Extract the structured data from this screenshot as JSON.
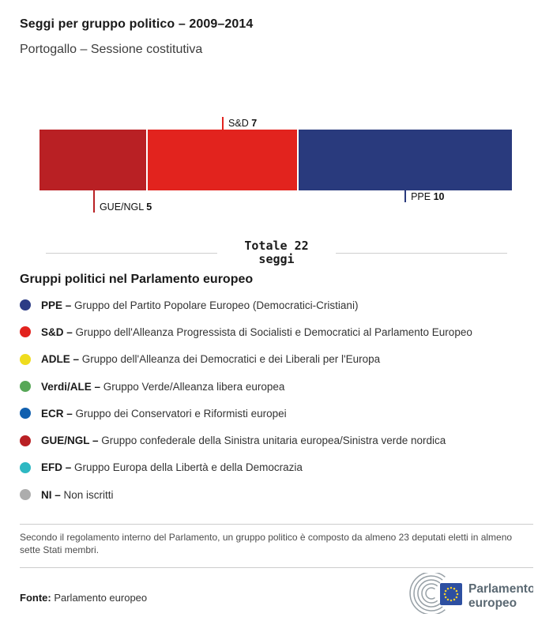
{
  "header": {
    "title": "Seggi per gruppo politico – 2009–2014",
    "subtitle": "Portogallo – Sessione costitutiva"
  },
  "chart_data": {
    "type": "bar",
    "variant": "stacked-horizontal-seat-bar",
    "title": "Seggi per gruppo politico – 2009–2014",
    "subtitle": "Portogallo – Sessione costitutiva",
    "total_seats": 22,
    "total_label_line1": "Totale 22",
    "total_label_line2": "seggi",
    "series": [
      {
        "name": "GUE/NGL",
        "value": 5,
        "color": "#b92024",
        "callout": "below",
        "tick_len": 28,
        "label_align": "end"
      },
      {
        "name": "S&D",
        "value": 7,
        "color": "#e2231e",
        "callout": "above",
        "tick_len": 16,
        "label_align": "start"
      },
      {
        "name": "PPE",
        "value": 10,
        "color": "#293a7d",
        "callout": "below",
        "tick_len": 15,
        "label_align": "start"
      }
    ],
    "axis": "none",
    "grid": false
  },
  "legend": {
    "heading": "Gruppi politici nel Parlamento europeo",
    "separator": " – ",
    "items": [
      {
        "abbr": "PPE",
        "desc": "Gruppo del Partito Popolare Europeo (Democratici-Cristiani)",
        "color": "#2c3c85"
      },
      {
        "abbr": "S&D",
        "desc": "Gruppo dell'Alleanza Progressista di Socialisti e Democratici al Parlamento Europeo",
        "color": "#e2231e"
      },
      {
        "abbr": "ADLE",
        "desc": "Gruppo dell'Alleanza dei Democratici e dei Liberali per l'Europa",
        "color": "#efdc1e"
      },
      {
        "abbr": "Verdi/ALE",
        "desc": "Gruppo Verde/Alleanza libera europea",
        "color": "#57a757"
      },
      {
        "abbr": "ECR",
        "desc": "Gruppo dei Conservatori e Riformisti europei",
        "color": "#1160af"
      },
      {
        "abbr": "GUE/NGL",
        "desc": "Gruppo confederale della Sinistra unitaria europea/Sinistra verde nordica",
        "color": "#b92024"
      },
      {
        "abbr": "EFD",
        "desc": "Gruppo Europa della Libertà e della Democrazia",
        "color": "#2eb8c2"
      },
      {
        "abbr": "NI",
        "desc": "Non iscritti",
        "color": "#adadad"
      }
    ]
  },
  "footnote": "Secondo il regolamento interno del Parlamento, un gruppo politico è composto da almeno 23 deputati eletti in almeno sette Stati membri.",
  "footer": {
    "source_label": "Fonte:",
    "source_value": " Parlamento europeo",
    "logo_line1": "Parlamento",
    "logo_line2": "europeo",
    "logo_colors": {
      "arcs": "#97a0a6",
      "flag": "#2d4fa1",
      "stars": "#f8d12e",
      "text": "#5b6973"
    }
  }
}
